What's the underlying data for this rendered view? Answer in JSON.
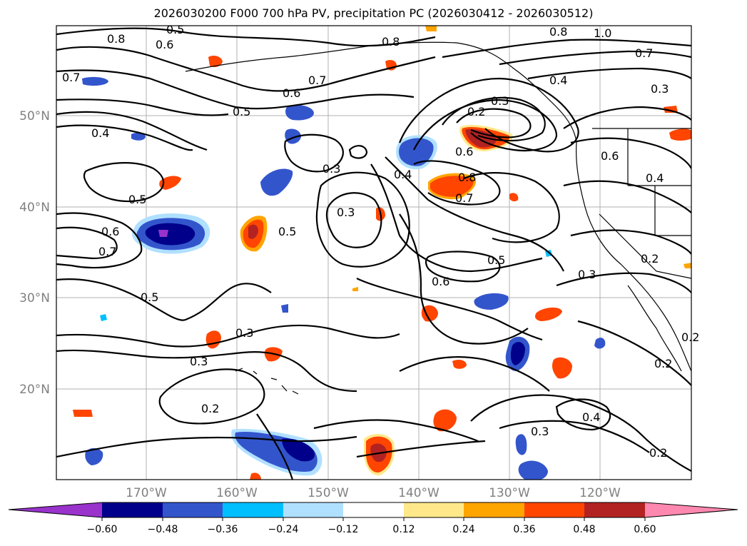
{
  "title": "2026030200 F000 700 hPa PV, precipitation PC (2026030412 - 2026030512)",
  "map": {
    "lon_labels": [
      "170°W",
      "160°W",
      "150°W",
      "140°W",
      "130°W",
      "120°W"
    ],
    "lat_labels": [
      "50°N",
      "40°N",
      "30°N",
      "20°N"
    ]
  },
  "contour_labels": [
    "0.5",
    "0.8",
    "0.6",
    "0.7",
    "0.4",
    "0.5",
    "0.6",
    "0.7",
    "0.8",
    "0.8",
    "1.0",
    "0.7",
    "0.4",
    "0.3",
    "0.3",
    "0.2",
    "0.6",
    "0.8",
    "0.7",
    "0.6",
    "0.4",
    "0.4",
    "0.3",
    "0.3",
    "0.5",
    "0.5",
    "0.6",
    "0.7",
    "0.5",
    "0.5",
    "0.6",
    "0.3",
    "0.2",
    "0.3",
    "0.3",
    "0.2",
    "0.4",
    "0.3",
    "0.2",
    "0.2",
    "0.2"
  ],
  "colorbar": {
    "ticks": [
      "−0.60",
      "−0.48",
      "−0.36",
      "−0.24",
      "−0.12",
      "0.12",
      "0.24",
      "0.36",
      "0.48",
      "0.60"
    ],
    "colors": [
      "#9933cc",
      "#00008b",
      "#3355cc",
      "#00bfff",
      "#b0e0ff",
      "#ffffff",
      "#ffe88a",
      "#ffa500",
      "#ff4500",
      "#b22222",
      "#ff88b0"
    ]
  }
}
